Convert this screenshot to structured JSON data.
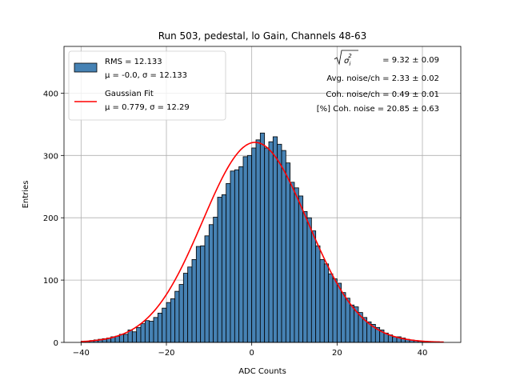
{
  "chart_data": {
    "type": "bar",
    "title": "Run 503, pedestal, lo Gain, Channels 48-63",
    "xlabel": "ADC Counts",
    "ylabel": "Entries",
    "xlim": [
      -44,
      49
    ],
    "ylim": [
      0,
      475
    ],
    "xticks": [
      -40,
      -20,
      0,
      20,
      40
    ],
    "yticks": [
      0,
      100,
      200,
      300,
      400
    ],
    "grid": true,
    "legend_position": "top-left",
    "bar_color": "#4682b4",
    "fit_color": "#ff0000",
    "bin_edges_start": -40,
    "bin_width": 1,
    "series": [
      {
        "name": "RMS = 12.133",
        "label_line2": "μ = -0.0, σ = 12.133",
        "values": [
          2,
          2,
          3,
          4,
          5,
          6,
          7,
          9,
          10,
          13,
          13,
          20,
          17,
          24,
          30,
          35,
          34,
          40,
          47,
          55,
          64,
          70,
          82,
          93,
          111,
          121,
          133,
          154,
          155,
          171,
          189,
          201,
          233,
          237,
          255,
          275,
          277,
          282,
          298,
          300,
          312,
          325,
          336,
          312,
          322,
          330,
          318,
          308,
          288,
          257,
          248,
          235,
          210,
          200,
          179,
          155,
          133,
          126,
          110,
          102,
          95,
          80,
          71,
          60,
          57,
          48,
          40,
          33,
          29,
          24,
          20,
          15,
          12,
          9,
          9,
          7,
          5,
          4,
          3,
          2,
          2,
          1,
          1,
          1,
          0
        ],
        "edge_color": "#000000"
      },
      {
        "name": "Gaussian Fit",
        "label_line2": "μ = 0.779, σ = 12.29",
        "mu": 0.779,
        "sigma": 12.29,
        "amplitude": 321,
        "x_range": [
          -40,
          45
        ]
      }
    ],
    "annotations": [
      "= 9.32 ± 0.09",
      "Avg. noise/ch = 2.33 ± 0.02",
      "Coh. noise/ch = 0.49 ± 0.01",
      "[%] Coh. noise = 20.85 ± 0.63"
    ]
  }
}
